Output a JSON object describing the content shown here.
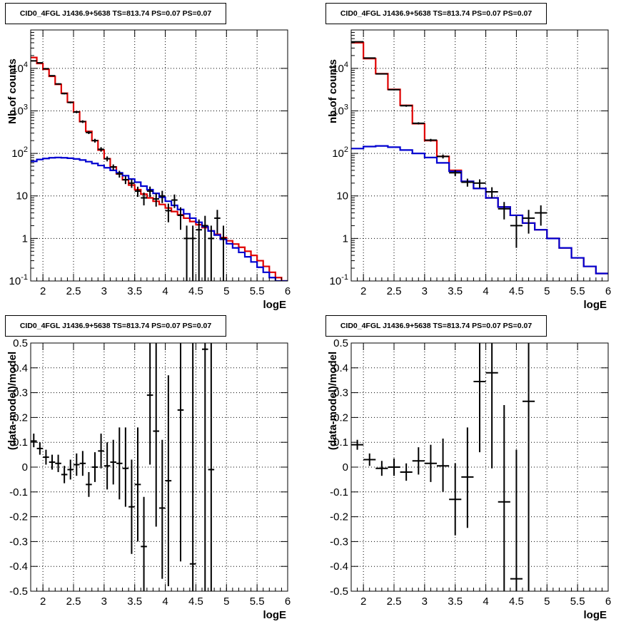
{
  "colors": {
    "data": "#000000",
    "total_model": "#e00000",
    "component_model": "#0000d0",
    "grid": "#000000"
  },
  "chart_data": [
    {
      "type": "line",
      "title": "CID0_4FGL J1436.9+5638 TS=813.74 PS=0.07 PS=0.07",
      "xlabel": "logE",
      "ylabel": "Nb of counts",
      "xlim": [
        1.8,
        6
      ],
      "ylim": [
        0.1,
        80000
      ],
      "yscale": "log",
      "grid": true,
      "x_ticks": [
        "2",
        "2.5",
        "3",
        "3.5",
        "4",
        "4.5",
        "5",
        "5.5",
        "6"
      ],
      "y_ticks": [
        "10^-1",
        "1",
        "10",
        "10^2",
        "10^3",
        "10^4"
      ],
      "bin_edges": [
        1.8,
        1.9,
        2.0,
        2.1,
        2.2,
        2.3,
        2.4,
        2.5,
        2.6,
        2.7,
        2.8,
        2.9,
        3.0,
        3.1,
        3.2,
        3.3,
        3.4,
        3.5,
        3.6,
        3.7,
        3.8,
        3.9,
        4.0,
        4.1,
        4.2,
        4.3,
        4.4,
        4.5,
        4.6,
        4.7,
        4.8,
        4.9,
        5.0,
        5.1,
        5.2,
        5.3,
        5.4,
        5.5,
        5.6,
        5.7,
        5.8,
        5.9,
        6.0
      ],
      "series": [
        {
          "values": [
            18000,
            13000,
            9500,
            6500,
            4200,
            2600,
            1600,
            950,
            560,
            330,
            200,
            120,
            75,
            48,
            33,
            24,
            18,
            14,
            11,
            9,
            7.5,
            6.3,
            5.2,
            4.3,
            3.6,
            3.0,
            2.5,
            2.1,
            1.8,
            1.5,
            1.25,
            1.05,
            0.88,
            0.74,
            0.62,
            0.5,
            0.4,
            0.3,
            0.22,
            0.16,
            0.12,
            0.1
          ],
          "style": "step",
          "color_key": "total_model"
        },
        {
          "values": [
            65,
            72,
            76,
            79,
            80,
            79,
            77,
            74,
            70,
            64,
            58,
            52,
            46,
            40,
            35,
            30,
            25,
            21,
            17,
            14,
            11.5,
            9.3,
            7.5,
            6.0,
            4.8,
            3.8,
            3.0,
            2.4,
            1.9,
            1.5,
            1.2,
            0.95,
            0.75,
            0.6,
            0.47,
            0.37,
            0.28,
            0.21,
            0.16,
            0.12,
            0.1,
            0.1
          ],
          "style": "step",
          "color_key": "component_model"
        },
        {
          "points": [
            {
              "x": 1.85,
              "y": 15000,
              "ylo": 14700,
              "yhi": 15300
            },
            {
              "x": 1.95,
              "y": 13500,
              "ylo": 13200,
              "yhi": 13800
            },
            {
              "x": 2.05,
              "y": 9800,
              "ylo": 9600,
              "yhi": 10000
            },
            {
              "x": 2.15,
              "y": 6700,
              "ylo": 6500,
              "yhi": 6900
            },
            {
              "x": 2.25,
              "y": 4300,
              "ylo": 4150,
              "yhi": 4450
            },
            {
              "x": 2.35,
              "y": 2550,
              "ylo": 2450,
              "yhi": 2650
            },
            {
              "x": 2.45,
              "y": 1580,
              "ylo": 1500,
              "yhi": 1660
            },
            {
              "x": 2.55,
              "y": 940,
              "ylo": 880,
              "yhi": 1000
            },
            {
              "x": 2.65,
              "y": 560,
              "ylo": 520,
              "yhi": 600
            },
            {
              "x": 2.75,
              "y": 310,
              "ylo": 285,
              "yhi": 335
            },
            {
              "x": 2.85,
              "y": 200,
              "ylo": 180,
              "yhi": 220
            },
            {
              "x": 2.95,
              "y": 125,
              "ylo": 110,
              "yhi": 140
            },
            {
              "x": 3.05,
              "y": 75,
              "ylo": 65,
              "yhi": 85
            },
            {
              "x": 3.15,
              "y": 48,
              "ylo": 41,
              "yhi": 55
            },
            {
              "x": 3.25,
              "y": 33,
              "ylo": 27,
              "yhi": 39
            },
            {
              "x": 3.35,
              "y": 24,
              "ylo": 19,
              "yhi": 29
            },
            {
              "x": 3.45,
              "y": 20,
              "ylo": 15.5,
              "yhi": 24.5
            },
            {
              "x": 3.55,
              "y": 13,
              "ylo": 9.5,
              "yhi": 16.5
            },
            {
              "x": 3.65,
              "y": 9,
              "ylo": 6,
              "yhi": 12
            },
            {
              "x": 3.75,
              "y": 13,
              "ylo": 9.4,
              "yhi": 16.6
            },
            {
              "x": 3.85,
              "y": 8.5,
              "ylo": 5.6,
              "yhi": 11.4
            },
            {
              "x": 3.95,
              "y": 10,
              "ylo": 6.8,
              "yhi": 13.2
            },
            {
              "x": 4.05,
              "y": 4.5,
              "ylo": 2.4,
              "yhi": 6.6
            },
            {
              "x": 4.15,
              "y": 8,
              "ylo": 5.2,
              "yhi": 10.8
            },
            {
              "x": 4.25,
              "y": 3.5,
              "ylo": 1.6,
              "yhi": 5.4
            },
            {
              "x": 4.35,
              "y": 1,
              "ylo": 0.1,
              "yhi": 2
            },
            {
              "x": 4.45,
              "y": 1,
              "ylo": 0.1,
              "yhi": 2
            },
            {
              "x": 4.55,
              "y": 1.6,
              "ylo": 0.1,
              "yhi": 2.8
            },
            {
              "x": 4.65,
              "y": 2,
              "ylo": 0.1,
              "yhi": 3.4
            },
            {
              "x": 4.75,
              "y": 1,
              "ylo": 0.1,
              "yhi": 2
            },
            {
              "x": 4.85,
              "y": 3,
              "ylo": 1.3,
              "yhi": 4.7
            },
            {
              "x": 4.95,
              "y": 1,
              "ylo": 0.1,
              "yhi": 2
            }
          ],
          "style": "errorbar",
          "xerr": 0.05,
          "color_key": "data"
        }
      ]
    },
    {
      "type": "line",
      "title": "CID0_4FGL J1436.9+5638 TS=813.74 PS=0.07 PS=0.07",
      "xlabel": "logE",
      "ylabel": "nb of counts",
      "xlim": [
        1.8,
        6
      ],
      "ylim": [
        0.1,
        80000
      ],
      "yscale": "log",
      "grid": true,
      "x_ticks": [
        "2",
        "2.5",
        "3",
        "3.5",
        "4",
        "4.5",
        "5",
        "5.5",
        "6"
      ],
      "y_ticks": [
        "10^-1",
        "1",
        "10",
        "10^2",
        "10^3",
        "10^4"
      ],
      "bin_edges": [
        1.8,
        2.0,
        2.2,
        2.4,
        2.6,
        2.8,
        3.0,
        3.2,
        3.4,
        3.6,
        3.8,
        4.0,
        4.2,
        4.4,
        4.6,
        4.8,
        5.0,
        5.2,
        5.4,
        5.6,
        5.8,
        6.0
      ],
      "series": [
        {
          "values": [
            40000,
            17000,
            7500,
            3200,
            1350,
            500,
            200,
            85,
            40,
            22,
            15,
            9,
            5.5,
            3.5,
            2.3,
            1.6,
            1.0,
            0.6,
            0.35,
            0.22,
            0.15
          ],
          "style": "step",
          "color_key": "total_model"
        },
        {
          "values": [
            130,
            145,
            150,
            140,
            120,
            100,
            80,
            60,
            38,
            22,
            15,
            9,
            5.5,
            3.5,
            2.3,
            1.6,
            1.0,
            0.6,
            0.35,
            0.22,
            0.15
          ],
          "style": "step",
          "color_key": "component_model"
        },
        {
          "points": [
            {
              "x": 1.9,
              "y": 42000,
              "ylo": 41500,
              "yhi": 42500
            },
            {
              "x": 2.1,
              "y": 17500,
              "ylo": 17200,
              "yhi": 17800
            },
            {
              "x": 2.3,
              "y": 7400,
              "ylo": 7200,
              "yhi": 7600
            },
            {
              "x": 2.5,
              "y": 3150,
              "ylo": 3050,
              "yhi": 3250
            },
            {
              "x": 2.7,
              "y": 1320,
              "ylo": 1250,
              "yhi": 1390
            },
            {
              "x": 2.9,
              "y": 510,
              "ylo": 480,
              "yhi": 540
            },
            {
              "x": 3.1,
              "y": 205,
              "ylo": 190,
              "yhi": 220
            },
            {
              "x": 3.3,
              "y": 85,
              "ylo": 76,
              "yhi": 94
            },
            {
              "x": 3.5,
              "y": 35,
              "ylo": 29,
              "yhi": 41
            },
            {
              "x": 3.7,
              "y": 21,
              "ylo": 16.5,
              "yhi": 25.5
            },
            {
              "x": 3.9,
              "y": 20,
              "ylo": 15.5,
              "yhi": 24.5
            },
            {
              "x": 4.1,
              "y": 12.5,
              "ylo": 9,
              "yhi": 16
            },
            {
              "x": 4.3,
              "y": 5,
              "ylo": 2.8,
              "yhi": 7.2
            },
            {
              "x": 4.5,
              "y": 2,
              "ylo": 0.6,
              "yhi": 3.4
            },
            {
              "x": 4.7,
              "y": 3,
              "ylo": 1.3,
              "yhi": 4.7
            },
            {
              "x": 4.9,
              "y": 4,
              "ylo": 2,
              "yhi": 6
            }
          ],
          "style": "errorbar",
          "xerr": 0.1,
          "color_key": "data"
        }
      ]
    },
    {
      "type": "scatter",
      "title": "CID0_4FGL J1436.9+5638 TS=813.74 PS=0.07 PS=0.07",
      "xlabel": "logE",
      "ylabel": "(data-model)/model",
      "xlim": [
        1.8,
        6
      ],
      "ylim": [
        -0.5,
        0.5
      ],
      "grid": true,
      "x_ticks": [
        "2",
        "2.5",
        "3",
        "3.5",
        "4",
        "4.5",
        "5",
        "5.5",
        "6"
      ],
      "y_ticks": [
        "-0.5",
        "-0.4",
        "-0.3",
        "-0.2",
        "-0.1",
        "0",
        "0.1",
        "0.2",
        "0.3",
        "0.4",
        "0.5"
      ],
      "series": [
        {
          "points": [
            {
              "x": 1.85,
              "y": 0.105,
              "ylo": 0.08,
              "yhi": 0.135
            },
            {
              "x": 1.95,
              "y": 0.075,
              "ylo": 0.05,
              "yhi": 0.1
            },
            {
              "x": 2.05,
              "y": 0.04,
              "ylo": 0.01,
              "yhi": 0.07
            },
            {
              "x": 2.15,
              "y": 0.02,
              "ylo": -0.01,
              "yhi": 0.05
            },
            {
              "x": 2.25,
              "y": 0.015,
              "ylo": -0.02,
              "yhi": 0.05
            },
            {
              "x": 2.35,
              "y": -0.03,
              "ylo": -0.065,
              "yhi": 0.005
            },
            {
              "x": 2.45,
              "y": -0.01,
              "ylo": -0.05,
              "yhi": 0.03
            },
            {
              "x": 2.55,
              "y": 0.01,
              "ylo": -0.035,
              "yhi": 0.055
            },
            {
              "x": 2.65,
              "y": 0.015,
              "ylo": -0.035,
              "yhi": 0.065
            },
            {
              "x": 2.75,
              "y": -0.07,
              "ylo": -0.12,
              "yhi": -0.02
            },
            {
              "x": 2.85,
              "y": 0,
              "ylo": -0.06,
              "yhi": 0.06
            },
            {
              "x": 2.95,
              "y": 0.065,
              "ylo": -0.005,
              "yhi": 0.135
            },
            {
              "x": 3.05,
              "y": 0.005,
              "ylo": -0.09,
              "yhi": 0.1
            },
            {
              "x": 3.15,
              "y": 0.02,
              "ylo": -0.07,
              "yhi": 0.11
            },
            {
              "x": 3.25,
              "y": 0.015,
              "ylo": -0.13,
              "yhi": 0.16
            },
            {
              "x": 3.35,
              "y": -0.005,
              "ylo": -0.16,
              "yhi": 0.16
            },
            {
              "x": 3.45,
              "y": -0.16,
              "ylo": -0.35,
              "yhi": 0.03
            },
            {
              "x": 3.55,
              "y": -0.07,
              "ylo": -0.3,
              "yhi": 0.16
            },
            {
              "x": 3.65,
              "y": -0.32,
              "ylo": -0.5,
              "yhi": -0.12
            },
            {
              "x": 3.75,
              "y": 0.29,
              "ylo": 0.01,
              "yhi": 0.5
            },
            {
              "x": 3.85,
              "y": 0.145,
              "ylo": -0.24,
              "yhi": 0.5
            },
            {
              "x": 3.95,
              "y": -0.165,
              "ylo": -0.45,
              "yhi": 0.11
            },
            {
              "x": 4.05,
              "y": -0.055,
              "ylo": -0.48,
              "yhi": 0.37
            },
            {
              "x": 4.25,
              "y": 0.23,
              "ylo": -0.38,
              "yhi": 0.5
            },
            {
              "x": 4.45,
              "y": -0.39,
              "ylo": -0.5,
              "yhi": 0.5
            },
            {
              "x": 4.65,
              "y": 0.475,
              "ylo": -0.5,
              "yhi": 0.5
            },
            {
              "x": 4.75,
              "y": -0.01,
              "ylo": -0.5,
              "yhi": 0.5
            }
          ],
          "style": "errorbar",
          "xerr": 0.05,
          "color_key": "data"
        }
      ]
    },
    {
      "type": "scatter",
      "title": "CID0_4FGL J1436.9+5638 TS=813.74 PS=0.07 PS=0.07",
      "xlabel": "logE",
      "ylabel": "(data-model)/model",
      "xlim": [
        1.8,
        6
      ],
      "ylim": [
        -0.5,
        0.5
      ],
      "grid": true,
      "x_ticks": [
        "2",
        "2.5",
        "3",
        "3.5",
        "4",
        "4.5",
        "5",
        "5.5",
        "6"
      ],
      "y_ticks": [
        "-0.5",
        "-0.4",
        "-0.3",
        "-0.2",
        "-0.1",
        "0",
        "0.1",
        "0.2",
        "0.3",
        "0.4",
        "0.5"
      ],
      "series": [
        {
          "points": [
            {
              "x": 1.9,
              "y": 0.09,
              "ylo": 0.07,
              "yhi": 0.11
            },
            {
              "x": 2.1,
              "y": 0.03,
              "ylo": 0.005,
              "yhi": 0.055
            },
            {
              "x": 2.3,
              "y": -0.005,
              "ylo": -0.035,
              "yhi": 0.025
            },
            {
              "x": 2.5,
              "y": 0,
              "ylo": -0.035,
              "yhi": 0.035
            },
            {
              "x": 2.7,
              "y": -0.02,
              "ylo": -0.055,
              "yhi": 0.015
            },
            {
              "x": 2.9,
              "y": 0.025,
              "ylo": -0.03,
              "yhi": 0.08
            },
            {
              "x": 3.1,
              "y": 0.015,
              "ylo": -0.06,
              "yhi": 0.09
            },
            {
              "x": 3.3,
              "y": 0.005,
              "ylo": -0.1,
              "yhi": 0.115
            },
            {
              "x": 3.5,
              "y": -0.13,
              "ylo": -0.275,
              "yhi": 0.015
            },
            {
              "x": 3.7,
              "y": -0.04,
              "ylo": -0.245,
              "yhi": 0.16
            },
            {
              "x": 3.9,
              "y": 0.345,
              "ylo": 0.06,
              "yhi": 0.5
            },
            {
              "x": 4.1,
              "y": 0.38,
              "ylo": -0.005,
              "yhi": 0.5
            },
            {
              "x": 4.3,
              "y": -0.14,
              "ylo": -0.5,
              "yhi": 0.25
            },
            {
              "x": 4.5,
              "y": -0.45,
              "ylo": -0.5,
              "yhi": 0.07
            },
            {
              "x": 4.7,
              "y": 0.265,
              "ylo": -0.5,
              "yhi": 0.5
            }
          ],
          "style": "errorbar",
          "xerr": 0.1,
          "color_key": "data"
        }
      ]
    }
  ]
}
